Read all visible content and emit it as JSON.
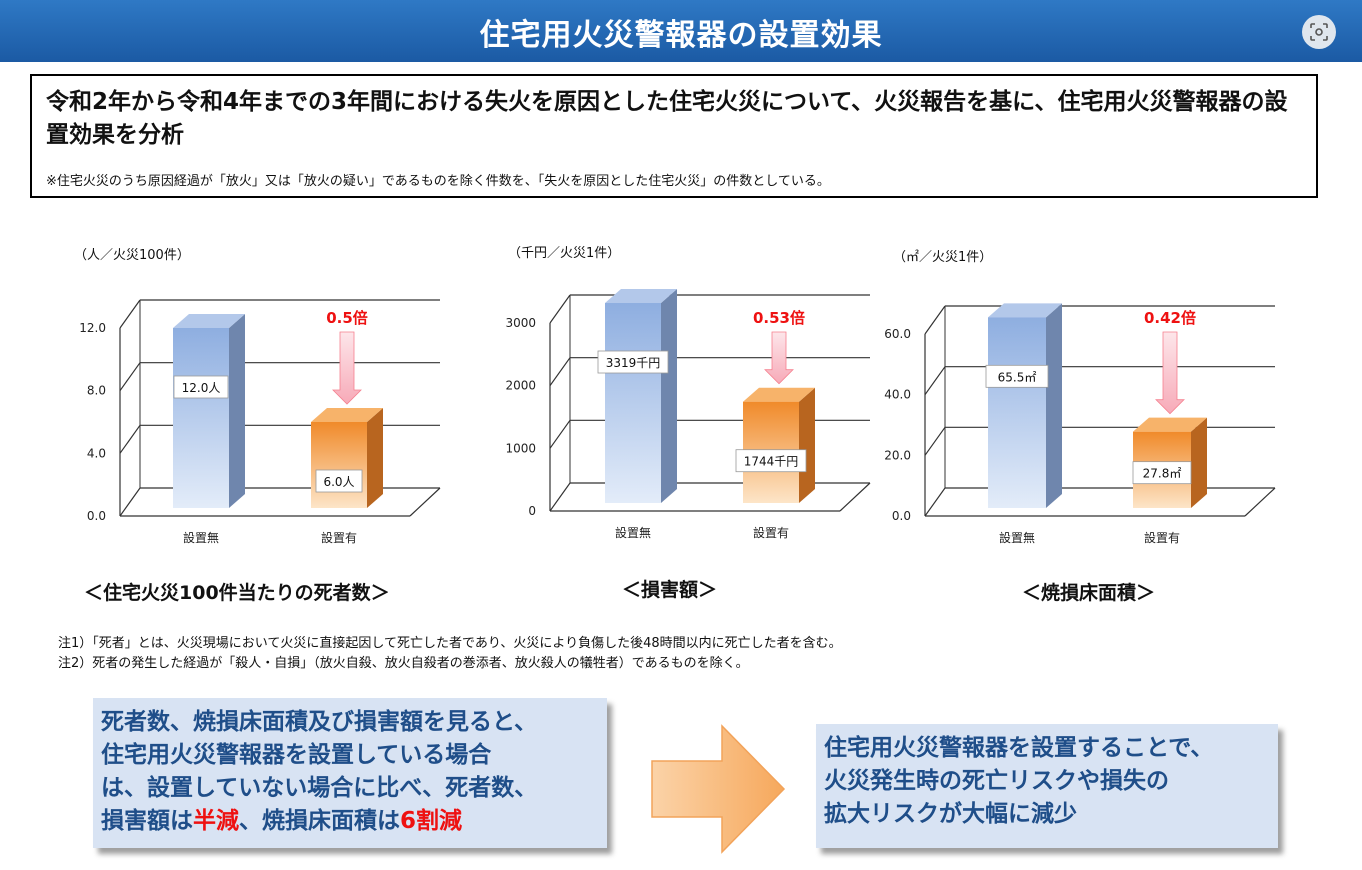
{
  "header": {
    "title": "住宅用火災警報器の設置効果"
  },
  "intro": {
    "main": "令和2年から令和4年までの3年間における失火を原因とした住宅火災について、火災報告を基に、住宅用火災警報器の設置効果を分析",
    "note": "※住宅火災のうち原因経過が「放火」又は「放火の疑い」であるものを除く件数を、「失火を原因とした住宅火災」の件数としている。"
  },
  "chart_data": [
    {
      "type": "bar",
      "unit_label": "（人／火災100件）",
      "categories": [
        "設置無",
        "設置有"
      ],
      "values": [
        12.0,
        6.0
      ],
      "value_labels": [
        "12.0人",
        "6.0人"
      ],
      "ylim": [
        0,
        12
      ],
      "yticks": [
        "0.0",
        "4.0",
        "8.0",
        "12.0"
      ],
      "ratio": "0.5倍",
      "caption": "＜住宅火災100件当たりの死者数＞"
    },
    {
      "type": "bar",
      "unit_label": "（千円／火災1件）",
      "categories": [
        "設置無",
        "設置有"
      ],
      "values": [
        3319,
        1744
      ],
      "value_labels": [
        "3319千円",
        "1744千円"
      ],
      "ylim": [
        0,
        3000
      ],
      "yticks": [
        "0",
        "1000",
        "2000",
        "3000"
      ],
      "ratio": "0.53倍",
      "caption": "＜損害額＞"
    },
    {
      "type": "bar",
      "unit_label": "（㎡／火災1件）",
      "categories": [
        "設置無",
        "設置有"
      ],
      "values": [
        65.5,
        27.8
      ],
      "value_labels": [
        "65.5㎡",
        "27.8㎡"
      ],
      "ylim": [
        0,
        60
      ],
      "yticks": [
        "0.0",
        "20.0",
        "40.0",
        "60.0"
      ],
      "ratio": "0.42倍",
      "caption": "＜焼損床面積＞"
    }
  ],
  "notes": [
    "注1）「死者」とは、火災現場において火災に直接起因して死亡した者であり、火災により負傷した後48時間以内に死亡した者を含む。",
    "注2）死者の発生した経過が「殺人・自損」（放火自殺、放火自殺者の巻添者、放火殺人の犠牲者）であるものを除く。"
  ],
  "summary_left": {
    "line1": "死者数、焼損床面積及び損害額を見ると、",
    "line2": "住宅用火災警報器を設置している場合",
    "line3": "は、設置していない場合に比べ、死者数、",
    "line4_a": "損害額は",
    "line4_b": "半減",
    "line4_c": "、焼損床面積は",
    "line4_d": "6割減"
  },
  "summary_right": {
    "line1": "住宅用火災警報器を設置することで、",
    "line2": "火災発生時の死亡リスクや損失の",
    "line3": "拡大リスクが大幅に減少"
  },
  "colors": {
    "header": "#1f63b0",
    "bar_without": "#8eaee0",
    "bar_with": "#f29a3d",
    "highlight_red": "#ee1111",
    "summary_text": "#1f4e89",
    "summary_bg": "#d8e3f3",
    "arrow": "#f8b777"
  },
  "icons": {
    "lens": "lens-search-icon",
    "flow": "right-arrow-icon",
    "down": "down-arrow-icon"
  }
}
